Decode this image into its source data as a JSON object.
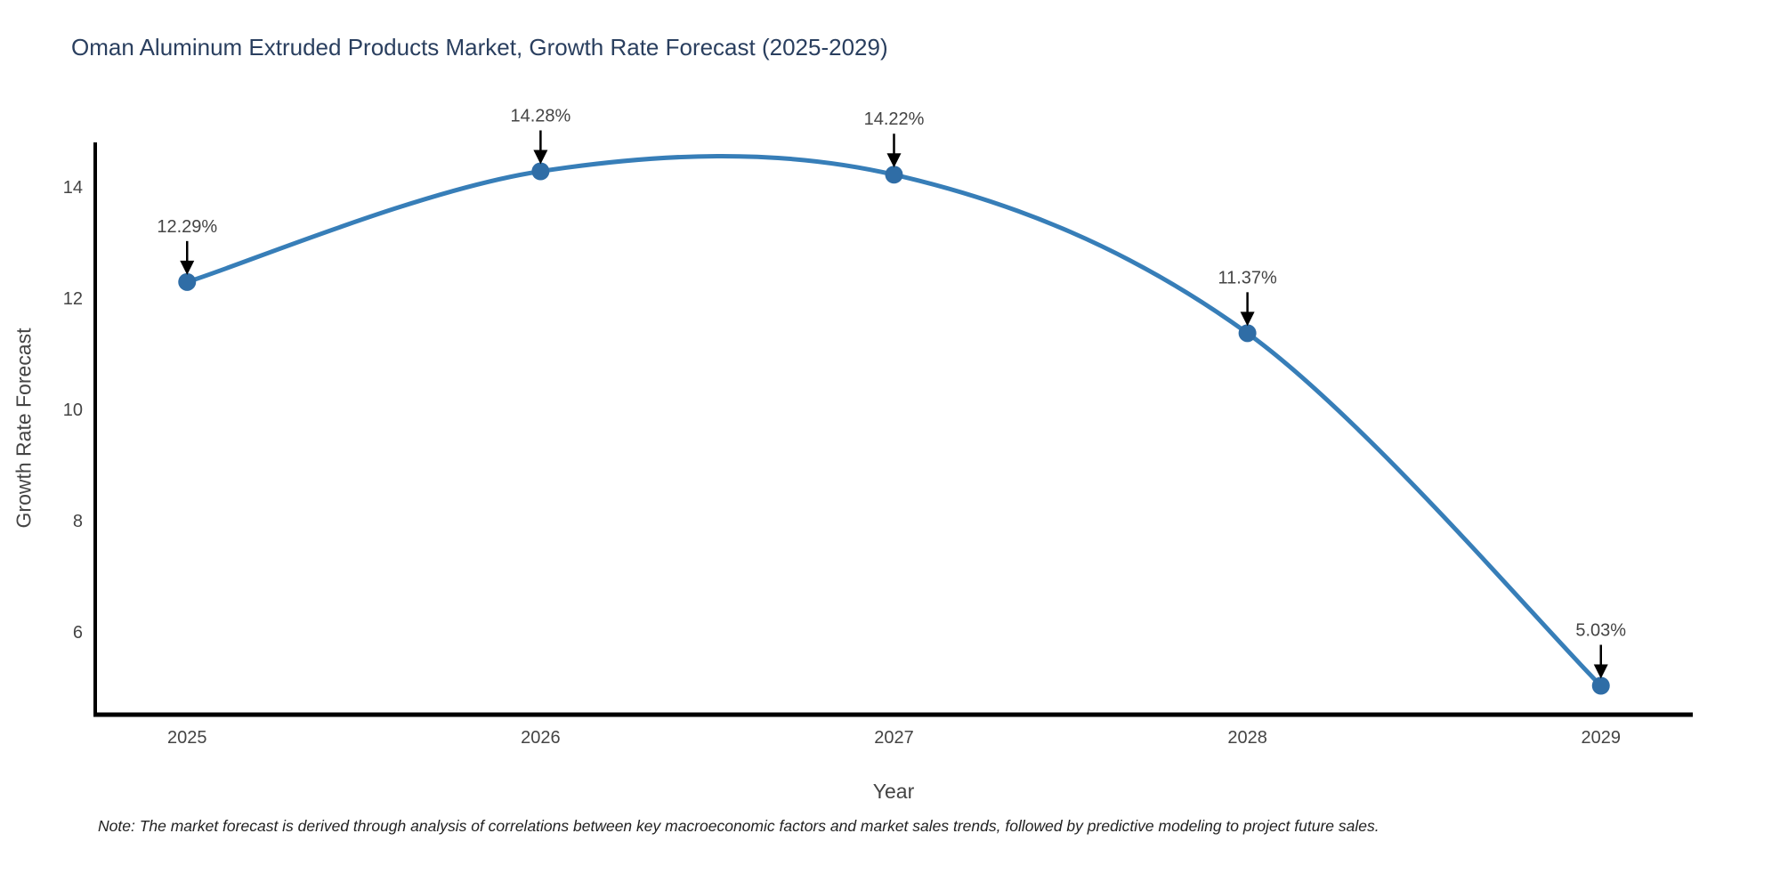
{
  "chart_data": {
    "type": "line",
    "title": "Oman Aluminum Extruded Products Market, Growth Rate Forecast (2025-2029)",
    "xlabel": "Year",
    "ylabel": "Growth Rate Forecast",
    "x": [
      2025,
      2026,
      2027,
      2028,
      2029
    ],
    "series": [
      {
        "name": "Growth Rate Forecast",
        "values": [
          12.29,
          14.28,
          14.22,
          11.37,
          5.03
        ],
        "point_labels": [
          "12.29%",
          "14.28%",
          "14.22%",
          "11.37%",
          "5.03%"
        ]
      }
    ],
    "xticks": [
      "2025",
      "2026",
      "2027",
      "2028",
      "2029"
    ],
    "yticks": [
      6,
      8,
      10,
      12,
      14
    ],
    "xlim": [
      2024.74,
      2029.26
    ],
    "ylim": [
      4.51,
      14.8
    ],
    "line_shape": "spline",
    "grid": false,
    "legend_position": "none",
    "annotation_arrows": true,
    "colors": {
      "line": "#377eb8",
      "marker": "#2f6da6",
      "axis": "#000000",
      "title_text": "#2a3f5f",
      "tick_text": "#444444",
      "annotation_text": "#444444",
      "arrow": "#000000",
      "background": "#ffffff"
    },
    "note": "Note: The market forecast is derived through analysis of correlations between key macroeconomic factors and market sales trends, followed by predictive modeling to project future sales."
  }
}
